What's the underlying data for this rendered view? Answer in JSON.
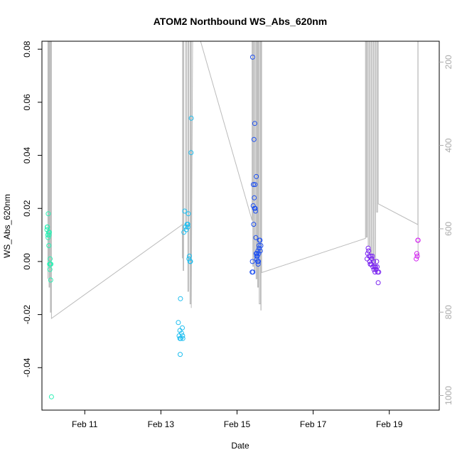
{
  "chart_data": {
    "type": "scatter",
    "title": "ATOM2 Northbound WS_Abs_620nm",
    "xlabel": "Date",
    "ylabel": "WS_Abs_620nm",
    "x_axis": {
      "range": [
        "2026-02-09T21:00",
        "2026-02-20T07:30"
      ],
      "ticks": [
        {
          "label": "Feb 11",
          "value": "2026-02-11"
        },
        {
          "label": "Feb 13",
          "value": "2026-02-13"
        },
        {
          "label": "Feb 15",
          "value": "2026-02-15"
        },
        {
          "label": "Feb 17",
          "value": "2026-02-17"
        },
        {
          "label": "Feb 19",
          "value": "2026-02-19"
        }
      ]
    },
    "y_axis": {
      "range": [
        -0.056,
        0.083
      ],
      "ticks": [
        {
          "label": "-0.04",
          "value": -0.04
        },
        {
          "label": "-0.02",
          "value": -0.02
        },
        {
          "label": "0.00",
          "value": 0.0
        },
        {
          "label": "0.02",
          "value": 0.02
        },
        {
          "label": "0.04",
          "value": 0.04
        },
        {
          "label": "0.06",
          "value": 0.06
        },
        {
          "label": "0.08",
          "value": 0.08
        }
      ]
    },
    "y2_axis": {
      "range": [
        1035,
        150
      ],
      "ticks": [
        {
          "label": "200",
          "value": 200
        },
        {
          "label": "400",
          "value": 400
        },
        {
          "label": "600",
          "value": 600
        },
        {
          "label": "800",
          "value": 800
        },
        {
          "label": "1000",
          "value": 1000
        }
      ]
    },
    "grid": false,
    "legend": "none",
    "colors": {
      "background": "#ffffff",
      "axis": "#000000",
      "track_line": "#bbbbbb",
      "right_axis": "#aaaaaa"
    },
    "series": [
      {
        "color": "#2af0b4",
        "values": [
          [
            "2026-02-10T00:10",
            0.012
          ],
          [
            "2026-02-10T00:20",
            0.013
          ],
          [
            "2026-02-10T00:30",
            0.013
          ],
          [
            "2026-02-10T00:40",
            0.01
          ],
          [
            "2026-02-10T00:50",
            0.009
          ],
          [
            "2026-02-10T01:00",
            0.018
          ],
          [
            "2026-02-10T01:10",
            0.011
          ],
          [
            "2026-02-10T01:20",
            0.006
          ],
          [
            "2026-02-10T01:30",
            0.01
          ],
          [
            "2026-02-10T01:40",
            0.011
          ],
          [
            "2026-02-10T01:50",
            -0.001
          ],
          [
            "2026-02-10T02:00",
            -0.003
          ],
          [
            "2026-02-10T02:10",
            0.001
          ],
          [
            "2026-02-10T02:20",
            -0.001
          ],
          [
            "2026-02-10T02:30",
            -0.007
          ],
          [
            "2026-02-10T02:40",
            -0.001
          ],
          [
            "2026-02-10T03:00",
            -0.051
          ]
        ]
      },
      {
        "color": "#1ebef0",
        "values": [
          [
            "2026-02-13T11:00",
            -0.023
          ],
          [
            "2026-02-13T11:30",
            -0.028
          ],
          [
            "2026-02-13T12:00",
            -0.026
          ],
          [
            "2026-02-13T12:00",
            -0.029
          ],
          [
            "2026-02-13T12:10",
            -0.035
          ],
          [
            "2026-02-13T12:20",
            -0.014
          ],
          [
            "2026-02-13T12:30",
            -0.029
          ],
          [
            "2026-02-13T13:00",
            -0.027
          ],
          [
            "2026-02-13T13:30",
            -0.025
          ],
          [
            "2026-02-13T13:40",
            -0.028
          ],
          [
            "2026-02-13T13:50",
            -0.029
          ],
          [
            "2026-02-13T14:30",
            0.011
          ],
          [
            "2026-02-13T15:00",
            0.019
          ],
          [
            "2026-02-13T15:30",
            0.013
          ],
          [
            "2026-02-13T16:00",
            0.012
          ],
          [
            "2026-02-13T16:30",
            0.014
          ],
          [
            "2026-02-13T17:00",
            0.013
          ],
          [
            "2026-02-13T17:00",
            0.014
          ],
          [
            "2026-02-13T17:20",
            0.018
          ],
          [
            "2026-02-13T17:40",
            0.001
          ],
          [
            "2026-02-13T18:00",
            0.002
          ],
          [
            "2026-02-13T18:20",
            0.0
          ],
          [
            "2026-02-13T18:40",
            0.0
          ],
          [
            "2026-02-13T19:00",
            0.041
          ],
          [
            "2026-02-13T19:10",
            0.054
          ]
        ]
      },
      {
        "color": "#1e50f0",
        "values": [
          [
            "2026-02-15T09:30",
            -0.004
          ],
          [
            "2026-02-15T09:40",
            0.0
          ],
          [
            "2026-02-15T09:50",
            0.077
          ],
          [
            "2026-02-15T10:00",
            -0.004
          ],
          [
            "2026-02-15T10:10",
            0.021
          ],
          [
            "2026-02-15T10:20",
            0.029
          ],
          [
            "2026-02-15T10:30",
            0.014
          ],
          [
            "2026-02-15T10:40",
            0.046
          ],
          [
            "2026-02-15T10:50",
            0.024
          ],
          [
            "2026-02-15T11:00",
            0.02
          ],
          [
            "2026-02-15T11:10",
            0.052
          ],
          [
            "2026-02-15T11:20",
            0.029
          ],
          [
            "2026-02-15T11:30",
            0.02
          ],
          [
            "2026-02-15T11:40",
            0.019
          ],
          [
            "2026-02-15T11:50",
            0.009
          ],
          [
            "2026-02-15T12:00",
            0.003
          ],
          [
            "2026-02-15T12:10",
            0.032
          ],
          [
            "2026-02-15T12:20",
            0.002
          ],
          [
            "2026-02-15T12:30",
            0.001
          ],
          [
            "2026-02-15T12:40",
            0.003
          ],
          [
            "2026-02-15T12:50",
            0.002
          ],
          [
            "2026-02-15T13:00",
            0.0
          ],
          [
            "2026-02-15T13:10",
            0.004
          ],
          [
            "2026-02-15T13:20",
            -0.001
          ],
          [
            "2026-02-15T13:30",
            0.0
          ],
          [
            "2026-02-15T13:40",
            0.003
          ],
          [
            "2026-02-15T13:50",
            0.006
          ],
          [
            "2026-02-15T14:00",
            0.005
          ],
          [
            "2026-02-15T14:10",
            0.008
          ],
          [
            "2026-02-15T14:30",
            0.008
          ],
          [
            "2026-02-15T14:40",
            0.004
          ],
          [
            "2026-02-15T15:00",
            0.006
          ]
        ]
      },
      {
        "color": "#7820f0",
        "values": [
          [
            "2026-02-18T10:00",
            0.001
          ],
          [
            "2026-02-18T10:20",
            0.003
          ],
          [
            "2026-02-18T10:40",
            0.005
          ],
          [
            "2026-02-18T11:00",
            0.004
          ],
          [
            "2026-02-18T11:20",
            0.002
          ],
          [
            "2026-02-18T11:40",
            0.0
          ],
          [
            "2026-02-18T12:00",
            -0.001
          ],
          [
            "2026-02-18T12:20",
            0.002
          ],
          [
            "2026-02-18T12:40",
            -0.001
          ],
          [
            "2026-02-18T13:00",
            0.001
          ],
          [
            "2026-02-18T13:20",
            0.002
          ],
          [
            "2026-02-18T13:40",
            -0.002
          ],
          [
            "2026-02-18T14:00",
            0.0
          ],
          [
            "2026-02-18T14:20",
            -0.003
          ],
          [
            "2026-02-18T14:40",
            -0.002
          ],
          [
            "2026-02-18T15:00",
            -0.004
          ],
          [
            "2026-02-18T15:20",
            -0.002
          ],
          [
            "2026-02-18T15:40",
            -0.003
          ],
          [
            "2026-02-18T16:00",
            0.0
          ],
          [
            "2026-02-18T16:20",
            -0.002
          ],
          [
            "2026-02-18T16:40",
            -0.004
          ],
          [
            "2026-02-18T17:00",
            -0.008
          ],
          [
            "2026-02-18T17:20",
            -0.004
          ]
        ]
      },
      {
        "color": "#d21ef0",
        "values": [
          [
            "2026-02-19T17:00",
            0.001
          ],
          [
            "2026-02-19T17:20",
            0.003
          ],
          [
            "2026-02-19T17:40",
            0.002
          ],
          [
            "2026-02-19T18:00",
            0.008
          ],
          [
            "2026-02-19T18:10",
            0.008
          ]
        ]
      }
    ],
    "track_line": [
      [
        "2026-02-10T00:45",
        720
      ],
      [
        "2026-02-10T00:45",
        150
      ],
      [
        "2026-02-10T01:00",
        150
      ],
      [
        "2026-02-10T01:00",
        690
      ],
      [
        "2026-02-10T01:10",
        690
      ],
      [
        "2026-02-10T01:10",
        150
      ],
      [
        "2026-02-10T01:30",
        150
      ],
      [
        "2026-02-10T01:30",
        740
      ],
      [
        "2026-02-10T01:50",
        740
      ],
      [
        "2026-02-10T01:50",
        150
      ],
      [
        "2026-02-10T02:20",
        150
      ],
      [
        "2026-02-10T02:20",
        800
      ],
      [
        "2026-02-10T02:40",
        800
      ],
      [
        "2026-02-10T02:40",
        150
      ],
      [
        "2026-02-10T03:00",
        150
      ],
      [
        "2026-02-10T03:00",
        815
      ],
      [
        "2026-02-13T13:30",
        590
      ],
      [
        "2026-02-13T13:30",
        670
      ],
      [
        "2026-02-13T13:40",
        670
      ],
      [
        "2026-02-13T13:40",
        150
      ],
      [
        "2026-02-13T14:00",
        150
      ],
      [
        "2026-02-13T14:00",
        700
      ],
      [
        "2026-02-13T14:20",
        700
      ],
      [
        "2026-02-13T14:20",
        150
      ],
      [
        "2026-02-13T15:30",
        150
      ],
      [
        "2026-02-13T15:30",
        600
      ],
      [
        "2026-02-13T16:10",
        600
      ],
      [
        "2026-02-13T16:10",
        150
      ],
      [
        "2026-02-13T17:00",
        150
      ],
      [
        "2026-02-13T17:00",
        750
      ],
      [
        "2026-02-13T17:30",
        750
      ],
      [
        "2026-02-13T17:30",
        150
      ],
      [
        "2026-02-13T18:20",
        150
      ],
      [
        "2026-02-13T18:20",
        780
      ],
      [
        "2026-02-13T18:50",
        780
      ],
      [
        "2026-02-13T18:50",
        150
      ],
      [
        "2026-02-13T19:10",
        150
      ],
      [
        "2026-02-13T19:10",
        790
      ],
      [
        "2026-02-13T20:00",
        150
      ],
      [
        "2026-02-14T01:00",
        150
      ],
      [
        "2026-02-15T09:30",
        580
      ],
      [
        "2026-02-15T09:30",
        150
      ],
      [
        "2026-02-15T10:00",
        150
      ],
      [
        "2026-02-15T10:00",
        690
      ],
      [
        "2026-02-15T10:20",
        690
      ],
      [
        "2026-02-15T10:20",
        150
      ],
      [
        "2026-02-15T11:00",
        150
      ],
      [
        "2026-02-15T11:00",
        700
      ],
      [
        "2026-02-15T11:20",
        700
      ],
      [
        "2026-02-15T11:20",
        150
      ],
      [
        "2026-02-15T12:00",
        150
      ],
      [
        "2026-02-15T12:00",
        720
      ],
      [
        "2026-02-15T12:30",
        720
      ],
      [
        "2026-02-15T12:30",
        150
      ],
      [
        "2026-02-15T13:00",
        150
      ],
      [
        "2026-02-15T13:00",
        740
      ],
      [
        "2026-02-15T13:30",
        740
      ],
      [
        "2026-02-15T13:30",
        150
      ],
      [
        "2026-02-15T14:00",
        150
      ],
      [
        "2026-02-15T14:00",
        780
      ],
      [
        "2026-02-15T14:40",
        780
      ],
      [
        "2026-02-15T14:40",
        150
      ],
      [
        "2026-02-15T15:00",
        150
      ],
      [
        "2026-02-15T15:00",
        795
      ],
      [
        "2026-02-15T15:10",
        795
      ],
      [
        "2026-02-15T15:10",
        150
      ],
      [
        "2026-02-15T15:30",
        150
      ],
      [
        "2026-02-15T15:30",
        705
      ],
      [
        "2026-02-18T09:00",
        623
      ],
      [
        "2026-02-18T09:00",
        150
      ],
      [
        "2026-02-18T09:30",
        150
      ],
      [
        "2026-02-18T09:30",
        620
      ],
      [
        "2026-02-18T10:00",
        620
      ],
      [
        "2026-02-18T10:00",
        150
      ],
      [
        "2026-02-18T10:40",
        150
      ],
      [
        "2026-02-18T10:40",
        640
      ],
      [
        "2026-02-18T11:20",
        640
      ],
      [
        "2026-02-18T11:20",
        150
      ],
      [
        "2026-02-18T12:00",
        150
      ],
      [
        "2026-02-18T12:00",
        660
      ],
      [
        "2026-02-18T12:40",
        660
      ],
      [
        "2026-02-18T12:40",
        150
      ],
      [
        "2026-02-18T13:20",
        150
      ],
      [
        "2026-02-18T13:20",
        680
      ],
      [
        "2026-02-18T14:00",
        680
      ],
      [
        "2026-02-18T14:00",
        150
      ],
      [
        "2026-02-18T14:40",
        150
      ],
      [
        "2026-02-18T14:40",
        700
      ],
      [
        "2026-02-18T15:20",
        700
      ],
      [
        "2026-02-18T15:20",
        150
      ],
      [
        "2026-02-18T16:00",
        150
      ],
      [
        "2026-02-18T16:00",
        560
      ],
      [
        "2026-02-18T16:40",
        560
      ],
      [
        "2026-02-18T16:40",
        150
      ],
      [
        "2026-02-18T17:00",
        150
      ],
      [
        "2026-02-18T17:00",
        540
      ],
      [
        "2026-02-19T18:00",
        590
      ],
      [
        "2026-02-19T18:00",
        150
      ],
      [
        "2026-02-19T18:10",
        150
      ],
      [
        "2026-02-19T18:10",
        670
      ]
    ]
  }
}
